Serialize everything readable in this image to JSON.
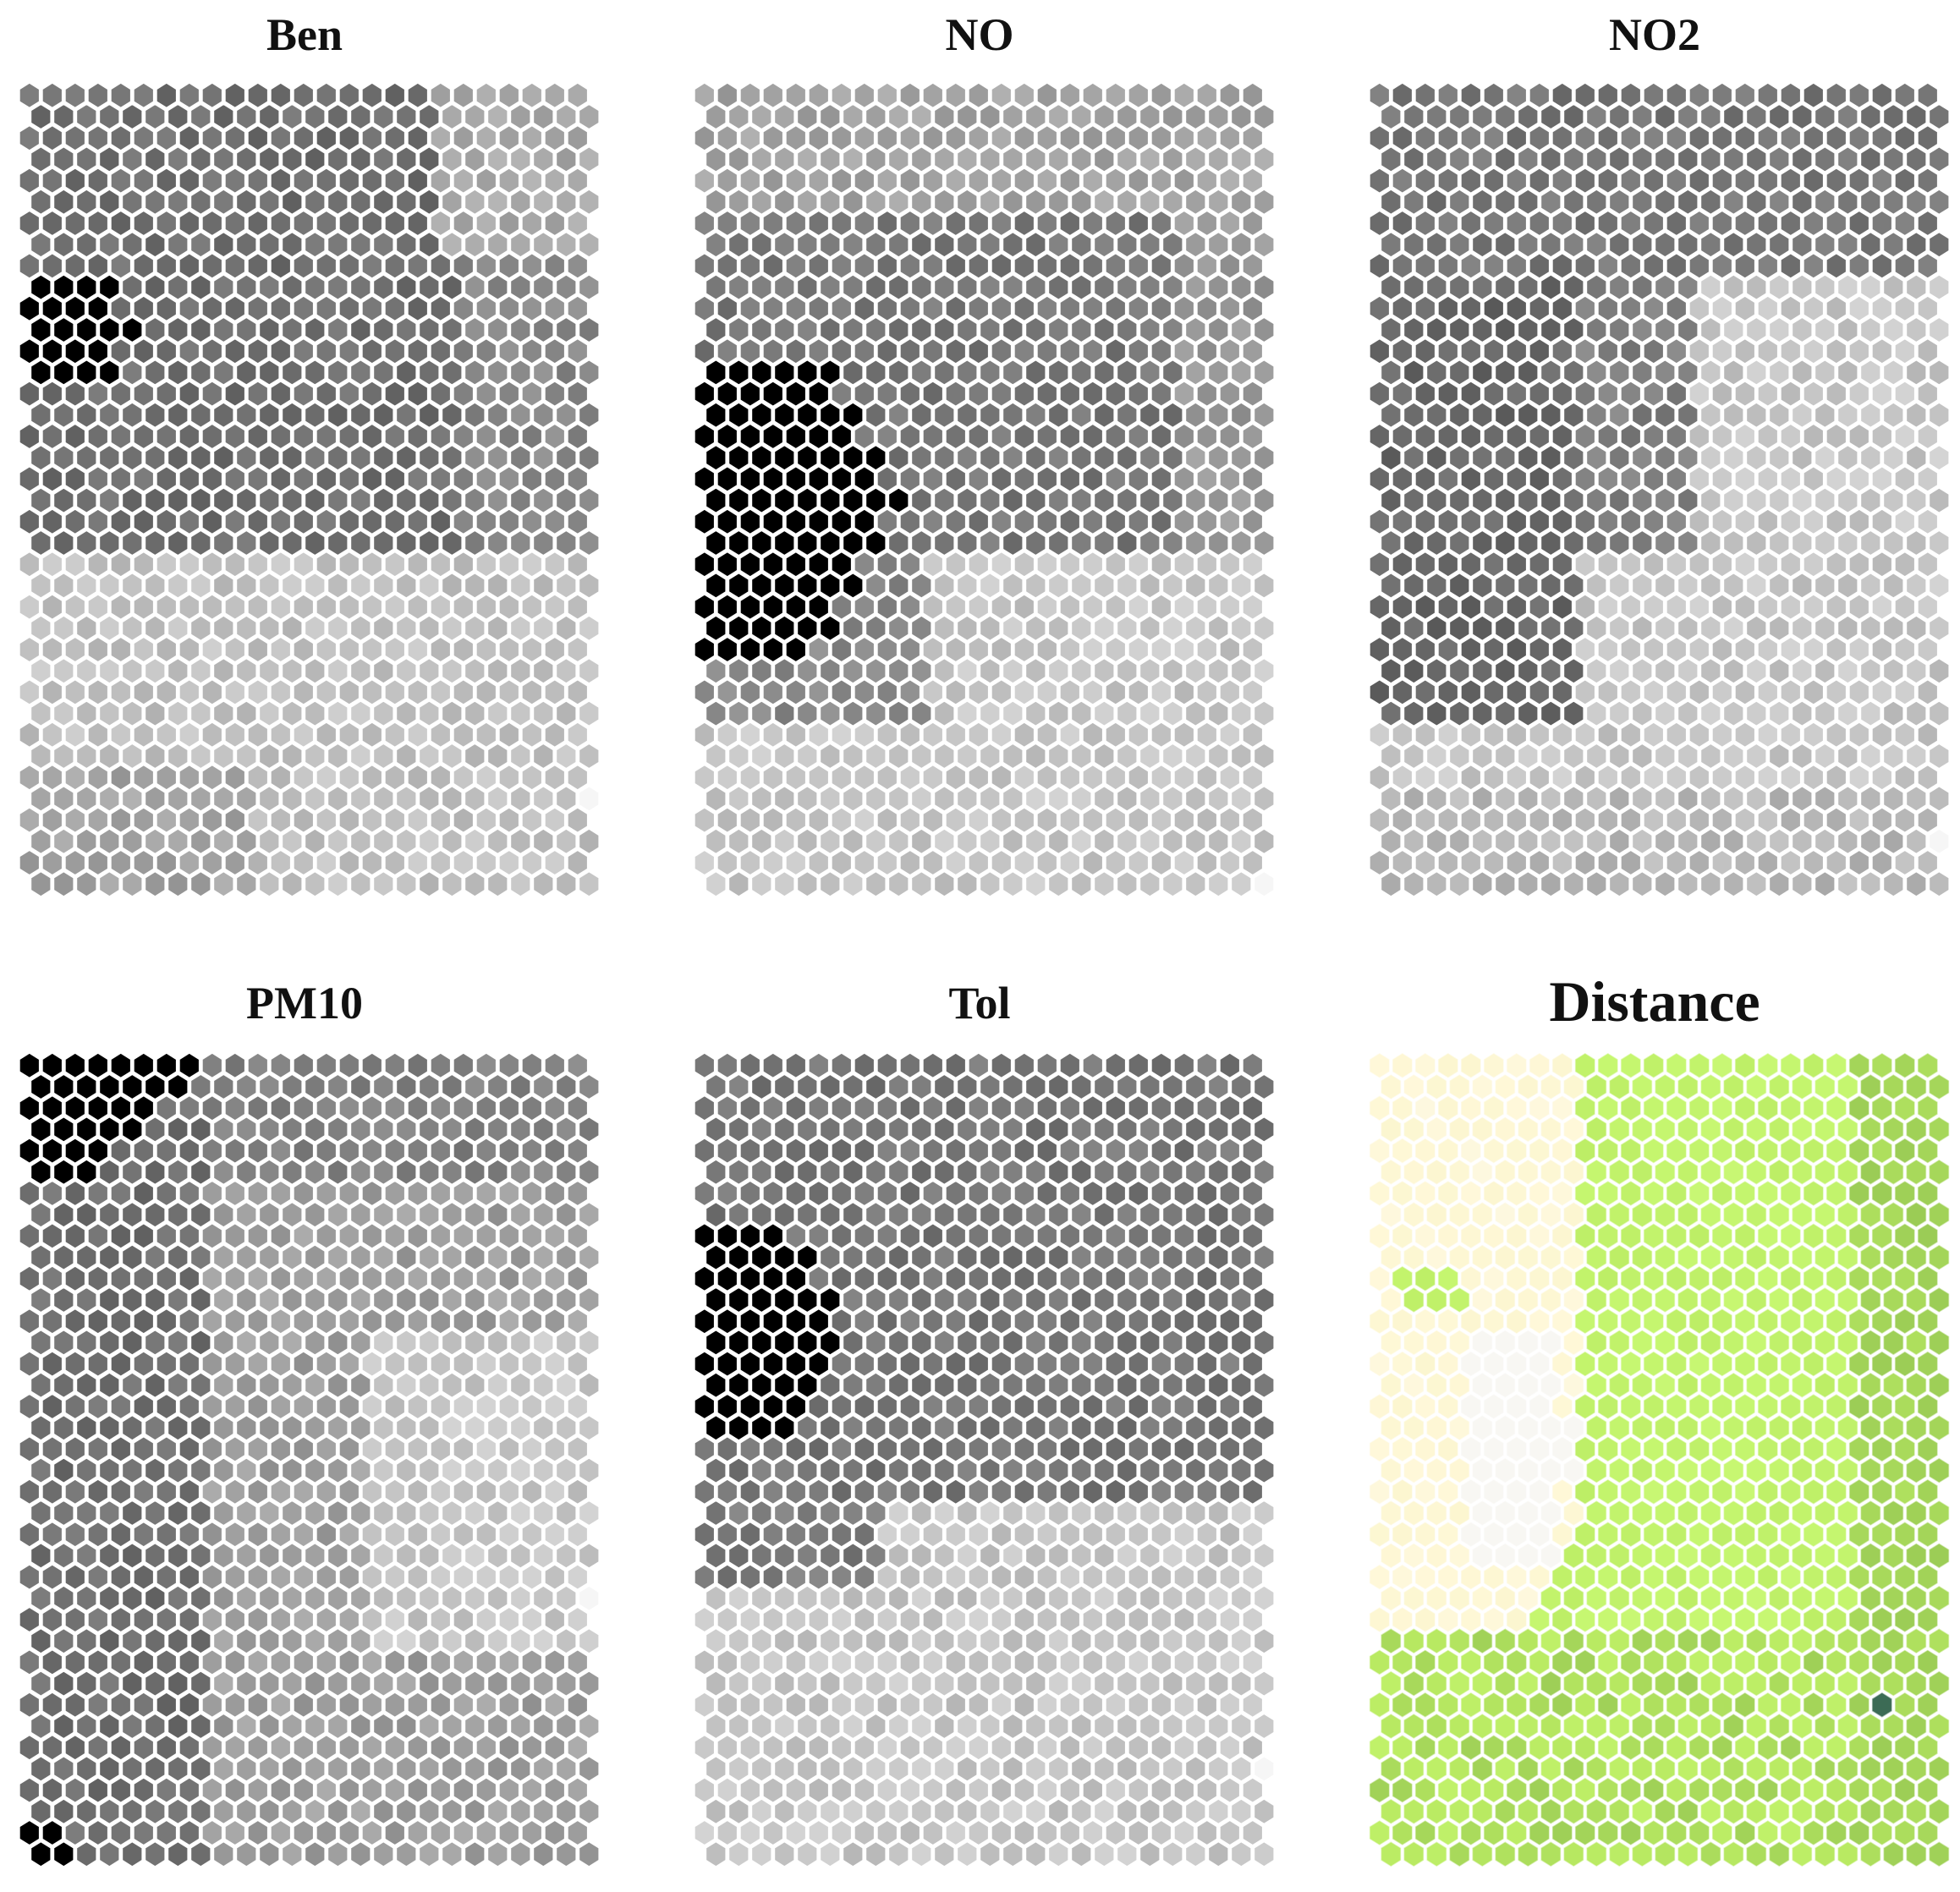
{
  "figure": {
    "layout": "2 rows x 3 columns of hexagonal self-organizing-map component planes"
  },
  "colors": {
    "grayscale_low": "#f6f6f6",
    "grayscale_high": "#000000",
    "distance_ramp": [
      "#f8f7f3",
      "#fff8d8",
      "#fbf6cf",
      "#c6f770",
      "#b9ea62",
      "#9acb55",
      "#3c6b55"
    ]
  },
  "chart_data": [
    {
      "type": "heatmap",
      "subtype": "hexagonal-som-component-plane",
      "title": "Ben",
      "colormap": "grayscale (light = low, black = high)",
      "grid": {
        "cols": 25,
        "rows": 38
      },
      "regions": [
        {
          "description": "upper half",
          "level": 0.55
        },
        {
          "description": "upper-right corner",
          "level": 0.3
        },
        {
          "description": "lower half",
          "level": 0.22
        },
        {
          "description": "lower-left",
          "level": 0.32
        },
        {
          "description": "dark cluster at left edge, rows 9-13",
          "level": 1.0
        },
        {
          "description": "single white cell at lower right",
          "level": 0.0
        }
      ]
    },
    {
      "type": "heatmap",
      "subtype": "hexagonal-som-component-plane",
      "title": "NO",
      "colormap": "grayscale (light = low, black = high)",
      "grid": {
        "cols": 25,
        "rows": 38
      },
      "regions": [
        {
          "description": "top rows",
          "level": 0.35
        },
        {
          "description": "middle band",
          "level": 0.5
        },
        {
          "description": "lower rows",
          "level": 0.2
        },
        {
          "description": "dark cluster at left edge, rows 13-26",
          "level": 1.0
        },
        {
          "description": "single white cell at bottom right",
          "level": 0.0
        }
      ]
    },
    {
      "type": "heatmap",
      "subtype": "hexagonal-som-component-plane",
      "title": "NO2",
      "colormap": "grayscale (light = low, black = high)",
      "grid": {
        "cols": 25,
        "rows": 38
      },
      "regions": [
        {
          "description": "top half",
          "level": 0.52
        },
        {
          "description": "left side, rows 10-30",
          "level": 0.55
        },
        {
          "description": "lower right",
          "level": 0.2
        },
        {
          "description": "single white cell at lower right",
          "level": 0.0
        }
      ]
    },
    {
      "type": "heatmap",
      "subtype": "hexagonal-som-component-plane",
      "title": "PM10",
      "colormap": "grayscale (light = low, black = high)",
      "grid": {
        "cols": 25,
        "rows": 38
      },
      "regions": [
        {
          "description": "left side",
          "level": 0.52
        },
        {
          "description": "right-center",
          "level": 0.22
        },
        {
          "description": "dark cluster at top-left corner, rows 0-5",
          "level": 1.0
        },
        {
          "description": "dark cells at bottom-left corner",
          "level": 1.0
        },
        {
          "description": "single white cell at right edge",
          "level": 0.0
        }
      ]
    },
    {
      "type": "heatmap",
      "subtype": "hexagonal-som-component-plane",
      "title": "Tol",
      "colormap": "grayscale (light = low, black = high)",
      "grid": {
        "cols": 25,
        "rows": 38
      },
      "regions": [
        {
          "description": "upper half",
          "level": 0.5
        },
        {
          "description": "lower half",
          "level": 0.2
        },
        {
          "description": "dark cluster at left edge, rows 8-17",
          "level": 1.0
        },
        {
          "description": "single white cell at lower right",
          "level": 0.0
        }
      ]
    },
    {
      "type": "heatmap",
      "subtype": "hexagonal-som-u-matrix",
      "title": "Distance",
      "colormap": "yellow-green (light cream = small distance, dark green = large distance)",
      "grid": {
        "cols": 25,
        "rows": 38
      },
      "regions": [
        {
          "description": "left cream region, rows 0-26",
          "level": 0.15
        },
        {
          "description": "white core inside cream region, rows 13-23",
          "level": 0.0
        },
        {
          "description": "right green region",
          "level": 0.55
        },
        {
          "description": "bottom green band, rows 27-37",
          "level": 0.6
        },
        {
          "description": "darker green right strip",
          "level": 0.75
        },
        {
          "description": "single dark teal cell near bottom right",
          "level": 1.0
        }
      ]
    }
  ],
  "titles": [
    "Ben",
    "NO",
    "NO2",
    "PM10",
    "Tol",
    "Distance"
  ]
}
